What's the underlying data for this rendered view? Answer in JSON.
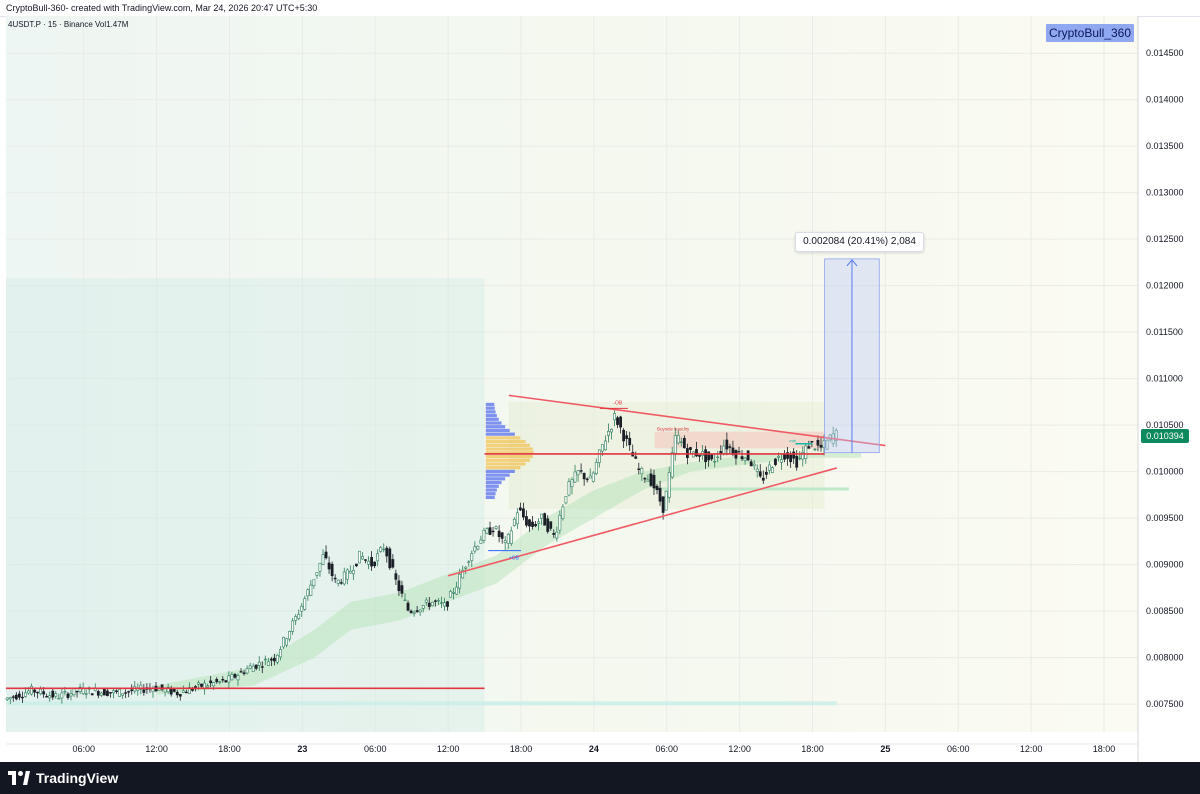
{
  "header": {
    "caption": "CryptoBull-360- created with TradingView.com, Mar 24, 2026 20:47 UTC+5:30"
  },
  "legend": {
    "symbol": "4USDT.P · 15 · Binance  Vol1.47M"
  },
  "watermark": {
    "label": "CryptoBull_360"
  },
  "measure": {
    "label": "0.002084 (20.41%) 2,084"
  },
  "annotations": {
    "ob_bear": "-OB",
    "ob_bull": "+OB",
    "liquidity": "Buyside liquidity",
    "small_tag": "eqh"
  },
  "footer": {
    "brand": "TradingView"
  },
  "chart_data": {
    "type": "candlestick",
    "symbol": "4USDT.P",
    "interval": "15",
    "exchange": "Binance",
    "volume": "1.47M",
    "last_price": "0.010394",
    "ylim": [
      0.0072,
      0.0149
    ],
    "y_ticks": [
      "0.014500",
      "0.014000",
      "0.013500",
      "0.013000",
      "0.012500",
      "0.012000",
      "0.011500",
      "0.011000",
      "0.010500",
      "0.010000",
      "0.009500",
      "0.009000",
      "0.008500",
      "0.008000",
      "0.007500"
    ],
    "x_ticks": [
      {
        "label": "06:00",
        "h": 6,
        "bold": false
      },
      {
        "label": "12:00",
        "h": 12,
        "bold": false
      },
      {
        "label": "18:00",
        "h": 18,
        "bold": false
      },
      {
        "label": "23",
        "h": 24,
        "bold": true
      },
      {
        "label": "06:00",
        "h": 30,
        "bold": false
      },
      {
        "label": "12:00",
        "h": 36,
        "bold": false
      },
      {
        "label": "18:00",
        "h": 42,
        "bold": false
      },
      {
        "label": "24",
        "h": 48,
        "bold": true
      },
      {
        "label": "06:00",
        "h": 54,
        "bold": false
      },
      {
        "label": "12:00",
        "h": 60,
        "bold": false
      },
      {
        "label": "18:00",
        "h": 66,
        "bold": false
      },
      {
        "label": "25",
        "h": 72,
        "bold": true
      },
      {
        "label": "06:00",
        "h": 78,
        "bold": false
      },
      {
        "label": "12:00",
        "h": 84,
        "bold": false
      },
      {
        "label": "18:00",
        "h": 90,
        "bold": false
      }
    ],
    "x_range_hours": [
      -0.4,
      92.8
    ],
    "price_path": [
      [
        -0.3,
        0.00755
      ],
      [
        2,
        0.00765
      ],
      [
        4,
        0.00758
      ],
      [
        6,
        0.00765
      ],
      [
        9,
        0.00762
      ],
      [
        12,
        0.00768
      ],
      [
        14,
        0.00762
      ],
      [
        16,
        0.0077
      ],
      [
        18,
        0.00775
      ],
      [
        20,
        0.0079
      ],
      [
        22,
        0.008
      ],
      [
        24,
        0.0085
      ],
      [
        25,
        0.0088
      ],
      [
        26,
        0.0091
      ],
      [
        27,
        0.0088
      ],
      [
        28,
        0.0089
      ],
      [
        29,
        0.0091
      ],
      [
        30,
        0.009
      ],
      [
        31,
        0.0092
      ],
      [
        32,
        0.0088
      ],
      [
        33,
        0.0085
      ],
      [
        34,
        0.00855
      ],
      [
        35,
        0.0086
      ],
      [
        36,
        0.00855
      ],
      [
        37,
        0.0088
      ],
      [
        38,
        0.0091
      ],
      [
        39,
        0.0093
      ],
      [
        40,
        0.0094
      ],
      [
        41,
        0.0092
      ],
      [
        42,
        0.0096
      ],
      [
        43,
        0.0094
      ],
      [
        44,
        0.0095
      ],
      [
        45,
        0.0093
      ],
      [
        46,
        0.0098
      ],
      [
        47,
        0.01
      ],
      [
        48,
        0.0099
      ],
      [
        49,
        0.0103
      ],
      [
        50,
        0.0106
      ],
      [
        51,
        0.0103
      ],
      [
        52,
        0.01
      ],
      [
        53,
        0.0099
      ],
      [
        54,
        0.0096
      ],
      [
        55,
        0.0104
      ],
      [
        56,
        0.0102
      ],
      [
        57,
        0.0102
      ],
      [
        58,
        0.0101
      ],
      [
        59,
        0.0103
      ],
      [
        60,
        0.0102
      ],
      [
        61,
        0.01015
      ],
      [
        62,
        0.0099
      ],
      [
        63,
        0.0101
      ],
      [
        64,
        0.0102
      ],
      [
        65,
        0.0101
      ],
      [
        66,
        0.0103
      ],
      [
        67,
        0.01025
      ],
      [
        68,
        0.0104
      ]
    ],
    "levels": [
      {
        "name": "support",
        "price": 0.00767,
        "from_h": -0.4,
        "to_h": 39
      },
      {
        "name": "mid",
        "price": 0.01019,
        "from_h": 39,
        "to_h": 67
      }
    ],
    "triangle": {
      "upper": [
        [
          41,
          0.01082
        ],
        [
          72,
          0.01028
        ]
      ],
      "lower": [
        [
          36,
          0.00888
        ],
        [
          68,
          0.01004
        ]
      ]
    },
    "projection": {
      "from_price": 0.010204,
      "to_price": 0.012288,
      "from_h": 67,
      "to_h": 71.5,
      "change": "0.002084",
      "percent": "20.41%",
      "ticks": "2,084"
    }
  }
}
